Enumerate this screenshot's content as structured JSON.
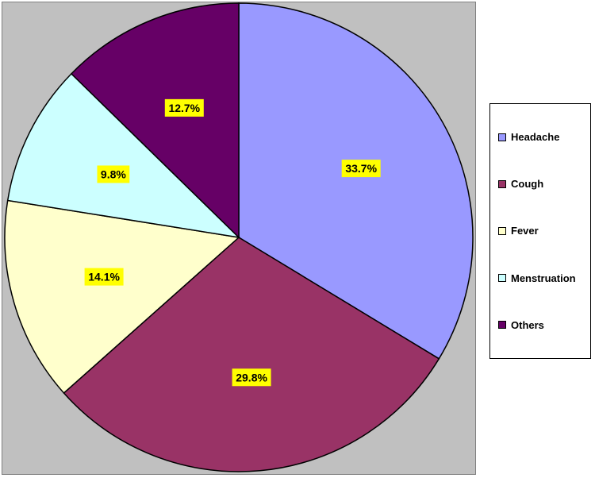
{
  "chart_data": {
    "type": "pie",
    "title": "",
    "series": [
      {
        "name": "Headache",
        "value": 33.7,
        "label": "33.7%",
        "color": "#9999ff"
      },
      {
        "name": "Cough",
        "value": 29.8,
        "label": "29.8%",
        "color": "#993366"
      },
      {
        "name": "Fever",
        "value": 14.1,
        "label": "14.1%",
        "color": "#ffffcc"
      },
      {
        "name": "Menstruation",
        "value": 9.8,
        "label": "9.8%",
        "color": "#ccffff"
      },
      {
        "name": "Others",
        "value": 12.7,
        "label": "12.7%",
        "color": "#660066"
      }
    ],
    "label_background": "#ffff00",
    "plot_background": "#c0c0c0",
    "legend_position": "right"
  },
  "legend": {
    "items": [
      {
        "label": "Headache",
        "color": "#9999ff"
      },
      {
        "label": "Cough",
        "color": "#993366"
      },
      {
        "label": "Fever",
        "color": "#ffffcc"
      },
      {
        "label": "Menstruation",
        "color": "#ccffff"
      },
      {
        "label": "Others",
        "color": "#660066"
      }
    ]
  }
}
